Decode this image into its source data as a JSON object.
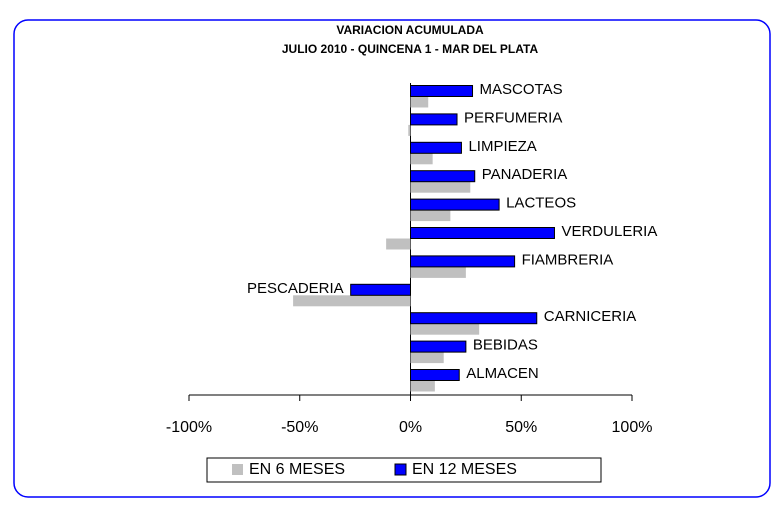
{
  "chart_data": {
    "type": "hbar",
    "title": "VARIACION ACUMULADA",
    "subtitle": "JULIO 2010 - QUINCENA 1 - MAR DEL PLATA",
    "categories": [
      "MASCOTAS",
      "PERFUMERIA",
      "LIMPIEZA",
      "PANADERIA",
      "LACTEOS",
      "VERDULERIA",
      "FIAMBRERIA",
      "PESCADERIA",
      "CARNICERIA",
      "BEBIDAS",
      "ALMACEN"
    ],
    "series": [
      {
        "name": "EN 6 MESES",
        "color": "#c0c0c0",
        "values": [
          8,
          -1,
          10,
          27,
          18,
          -11,
          25,
          -53,
          31,
          15,
          11
        ]
      },
      {
        "name": "EN 12 MESES",
        "color": "#0000ff",
        "values": [
          28,
          21,
          23,
          29,
          40,
          65,
          47,
          -27,
          57,
          25,
          22
        ]
      }
    ],
    "xlim": [
      -100,
      100
    ],
    "xticks": [
      {
        "value": -100,
        "label": "-100%"
      },
      {
        "value": -50,
        "label": "-50%"
      },
      {
        "value": 0,
        "label": "0%"
      },
      {
        "value": 50,
        "label": "50%"
      },
      {
        "value": 100,
        "label": "100%"
      }
    ],
    "legend": "bottom"
  }
}
